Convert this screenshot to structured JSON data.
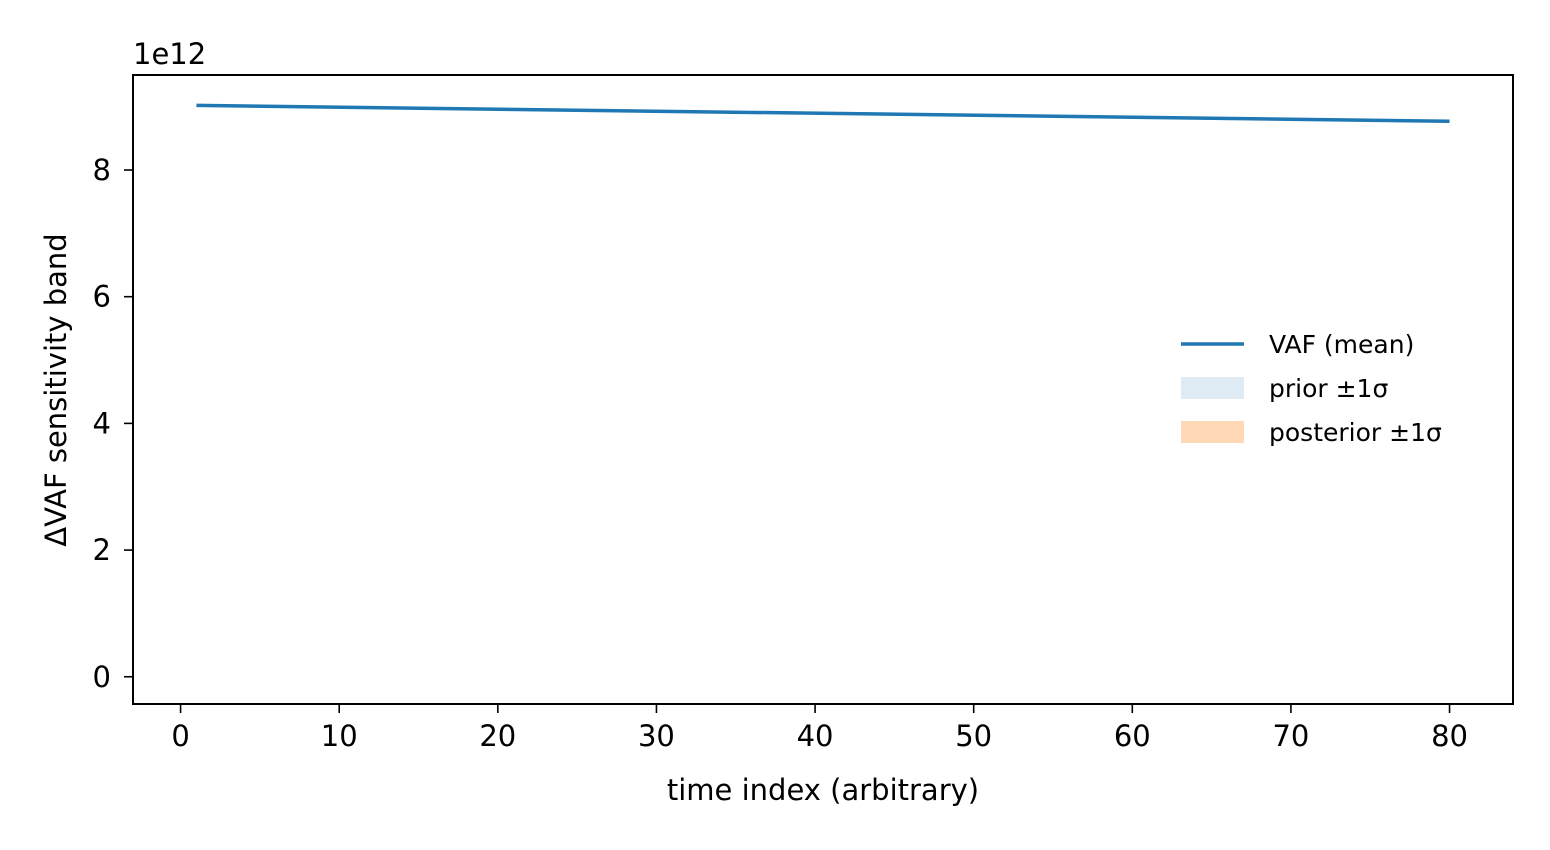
{
  "chart_data": {
    "type": "line",
    "xlabel": "time index (arbitrary)",
    "ylabel": "ΔVAF sensitivity band",
    "y_offset_label": "1e12",
    "y_scale": 1000000000000.0,
    "xlim": [
      -3,
      84
    ],
    "ylim": [
      -0.43,
      9.5
    ],
    "x_ticks": [
      0,
      10,
      20,
      30,
      40,
      50,
      60,
      70,
      80
    ],
    "y_ticks": [
      0,
      2,
      4,
      6,
      8
    ],
    "grid": false,
    "legend_position": "center-right",
    "series": [
      {
        "name": "VAF (mean)",
        "kind": "line",
        "color": "#1f77b4",
        "x": [
          1,
          80
        ],
        "y": [
          9.02,
          8.77
        ]
      },
      {
        "name": "prior ±1σ",
        "kind": "band",
        "color": "#1f77b4",
        "opacity": 0.15,
        "x": [
          1,
          80
        ],
        "lower": [
          9.02,
          8.77
        ],
        "upper": [
          9.02,
          8.77
        ]
      },
      {
        "name": "posterior ±1σ",
        "kind": "band",
        "color": "#ff7f0e",
        "opacity": 0.3,
        "x": [
          1,
          80
        ],
        "lower": [
          9.02,
          8.77
        ],
        "upper": [
          9.02,
          8.77
        ]
      }
    ]
  }
}
